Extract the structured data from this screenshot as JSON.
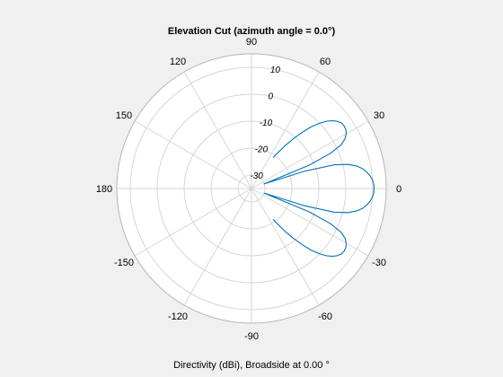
{
  "chart_data": {
    "type": "line",
    "subtype": "polar",
    "title": "Elevation Cut (azimuth angle = 0.0°)",
    "xlabel": "Directivity (dBi), Broadside at 0.00 °",
    "angle_ticks": [
      "0",
      "30",
      "60",
      "90",
      "120",
      "150",
      "180",
      "-150",
      "-120",
      "-90",
      "-60",
      "-30"
    ],
    "angle_tick_values": [
      0,
      30,
      60,
      90,
      120,
      150,
      180,
      -150,
      -120,
      -90,
      -60,
      -30
    ],
    "radial_ticks": [
      "-30",
      "-20",
      "-10",
      "0",
      "10"
    ],
    "radial_tick_values": [
      -30,
      -20,
      -10,
      0,
      10
    ],
    "rlim": [
      -35,
      15
    ],
    "grid": true,
    "series_color": "#0072bd",
    "series": [
      {
        "theta_deg": [
          0,
          2,
          4,
          6,
          8,
          10,
          12,
          14,
          16,
          18,
          20,
          22,
          24,
          26,
          28,
          30,
          32,
          34,
          36,
          38,
          40,
          42,
          44,
          46,
          48,
          50,
          52,
          54,
          55
        ],
        "r_dbi": [
          10.5,
          10.4,
          10.0,
          9.3,
          8.3,
          7.0,
          5.0,
          2.0,
          -3.0,
          -14.0,
          -30.0,
          -12.0,
          -3.0,
          2.0,
          4.3,
          5.6,
          6.3,
          6.5,
          6.3,
          5.5,
          4.2,
          2.3,
          -0.2,
          -3.2,
          -7.0,
          -11.0,
          -15.0,
          -19.0,
          -21.0
        ]
      },
      {
        "theta_deg": [
          0,
          -2,
          -4,
          -6,
          -8,
          -10,
          -12,
          -14,
          -16,
          -18,
          -20,
          -22,
          -24,
          -26,
          -28,
          -30,
          -32,
          -34,
          -36,
          -38,
          -40,
          -42,
          -44,
          -46,
          -48,
          -50,
          -52,
          -54,
          -55
        ],
        "r_dbi": [
          10.5,
          10.4,
          10.0,
          9.3,
          8.3,
          7.0,
          5.0,
          2.0,
          -3.0,
          -14.0,
          -30.0,
          -12.0,
          -3.0,
          2.0,
          4.3,
          5.6,
          6.3,
          6.5,
          6.3,
          5.5,
          4.2,
          2.3,
          -0.2,
          -3.2,
          -7.0,
          -11.0,
          -15.0,
          -19.0,
          -21.0
        ]
      }
    ]
  }
}
